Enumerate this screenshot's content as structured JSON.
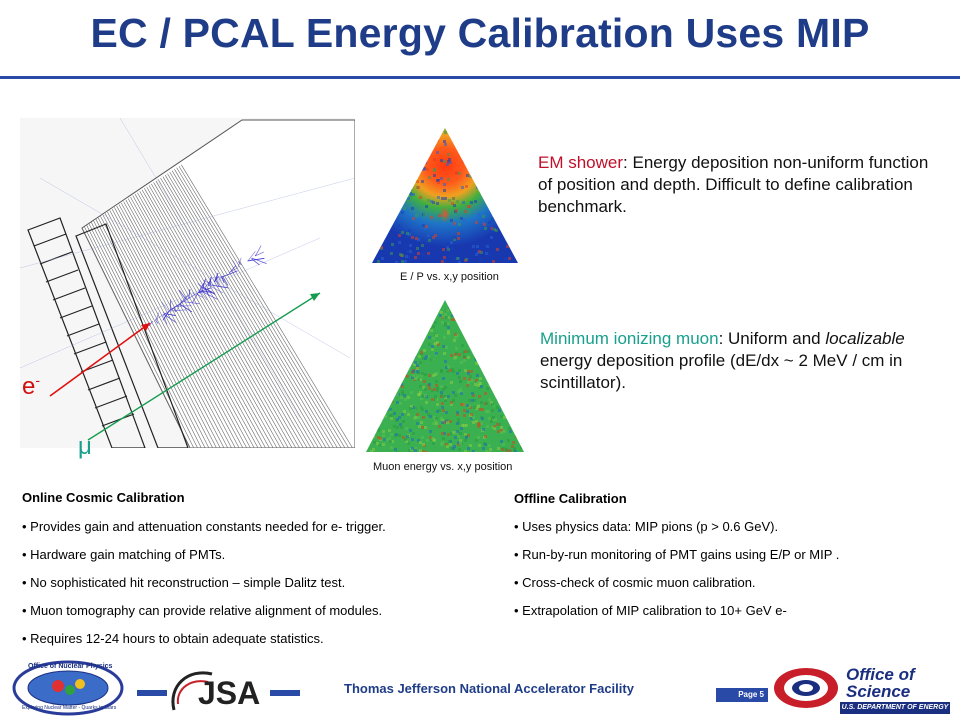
{
  "title": "EC / PCAL Energy Calibration Uses MIP",
  "figure": {
    "electron_label": "e",
    "electron_sup": "-",
    "muon_label": "μ"
  },
  "plots": {
    "top_caption": "E / P vs. x,y position",
    "bottom_caption": "Muon energy vs. x,y position"
  },
  "em_shower": {
    "label": "EM shower",
    "text": ": Energy deposition non-uniform function of position and depth. Difficult to define calibration benchmark."
  },
  "muon": {
    "label": "Minimum ionizing muon",
    "text_1": ": Uniform and ",
    "text_italic": "localizable",
    "text_2": " energy deposition profile (dE/dx ~ 2 MeV / cm in scintillator)."
  },
  "online": {
    "title": "Online Cosmic Calibration",
    "items": [
      "Provides gain and attenuation constants needed for e- trigger.",
      "Hardware gain matching of PMTs.",
      "No sophisticated hit reconstruction – simple Dalitz test.",
      "Muon tomography can provide relative alignment of modules.",
      "Requires 12-24 hours to obtain adequate statistics."
    ]
  },
  "offline": {
    "title": "Offline Calibration",
    "items": [
      "Uses physics data: MIP pions (p > 0.6 GeV).",
      "Run-by-run monitoring of PMT gains using E/P or MIP .",
      "Cross-check of cosmic muon calibration.",
      "Extrapolation of MIP calibration to 10+ GeV e-"
    ]
  },
  "footer": {
    "lab": "Thomas Jefferson National Accelerator Facility",
    "page": "Page 5",
    "jsa": "JSA",
    "office_line1": "Office of",
    "office_line2": "Science",
    "doe": "U.S. DEPARTMENT OF ENERGY",
    "onp_top": "Office of Nuclear Physics",
    "onp_bottom": "Exploring Nuclear Matter - Quarks to Stars"
  },
  "colors": {
    "title": "#1f3c88",
    "accent": "#2a4aa8",
    "em_label": "#c0102a",
    "muon_label": "#18a08c"
  }
}
